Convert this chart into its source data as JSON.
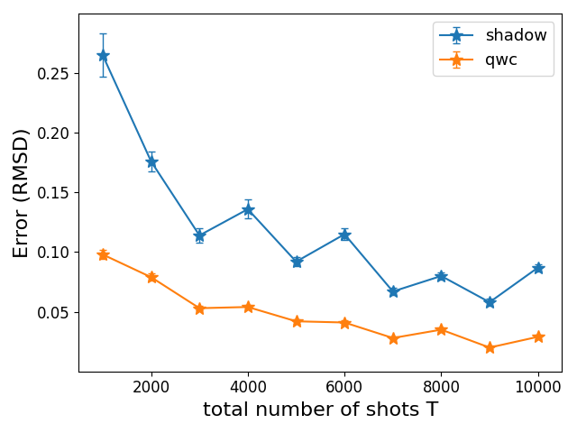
{
  "title": "",
  "xlabel": "total number of shots T",
  "ylabel": "Error (RMSD)",
  "x": [
    1000,
    2000,
    3000,
    4000,
    5000,
    6000,
    7000,
    8000,
    9000,
    10000
  ],
  "shadow_y": [
    0.265,
    0.176,
    0.114,
    0.136,
    0.092,
    0.115,
    0.067,
    0.08,
    0.058,
    0.087
  ],
  "shadow_yerr": [
    0.018,
    0.008,
    0.006,
    0.008,
    0.004,
    0.005,
    0.003,
    0.003,
    0.003,
    0.003
  ],
  "qwc_y": [
    0.098,
    0.079,
    0.053,
    0.054,
    0.042,
    0.041,
    0.028,
    0.035,
    0.02,
    0.029
  ],
  "qwc_yerr": [
    0.004,
    0.003,
    0.002,
    0.002,
    0.002,
    0.002,
    0.001,
    0.002,
    0.001,
    0.002
  ],
  "shadow_color": "#1f77b4",
  "qwc_color": "#ff7f0e",
  "marker": "*",
  "linewidth": 1.5,
  "markersize": 10,
  "legend_loc": "upper right",
  "ylim": [
    0.0,
    0.3
  ],
  "yticks": [
    0.05,
    0.1,
    0.15,
    0.2,
    0.25
  ],
  "xticks": [
    2000,
    4000,
    6000,
    8000,
    10000
  ],
  "xlim": [
    500,
    10500
  ],
  "xlabel_fontsize": 16,
  "ylabel_fontsize": 16,
  "tick_fontsize": 12,
  "legend_fontsize": 13,
  "capsize": 3,
  "elinewidth": 1.0
}
